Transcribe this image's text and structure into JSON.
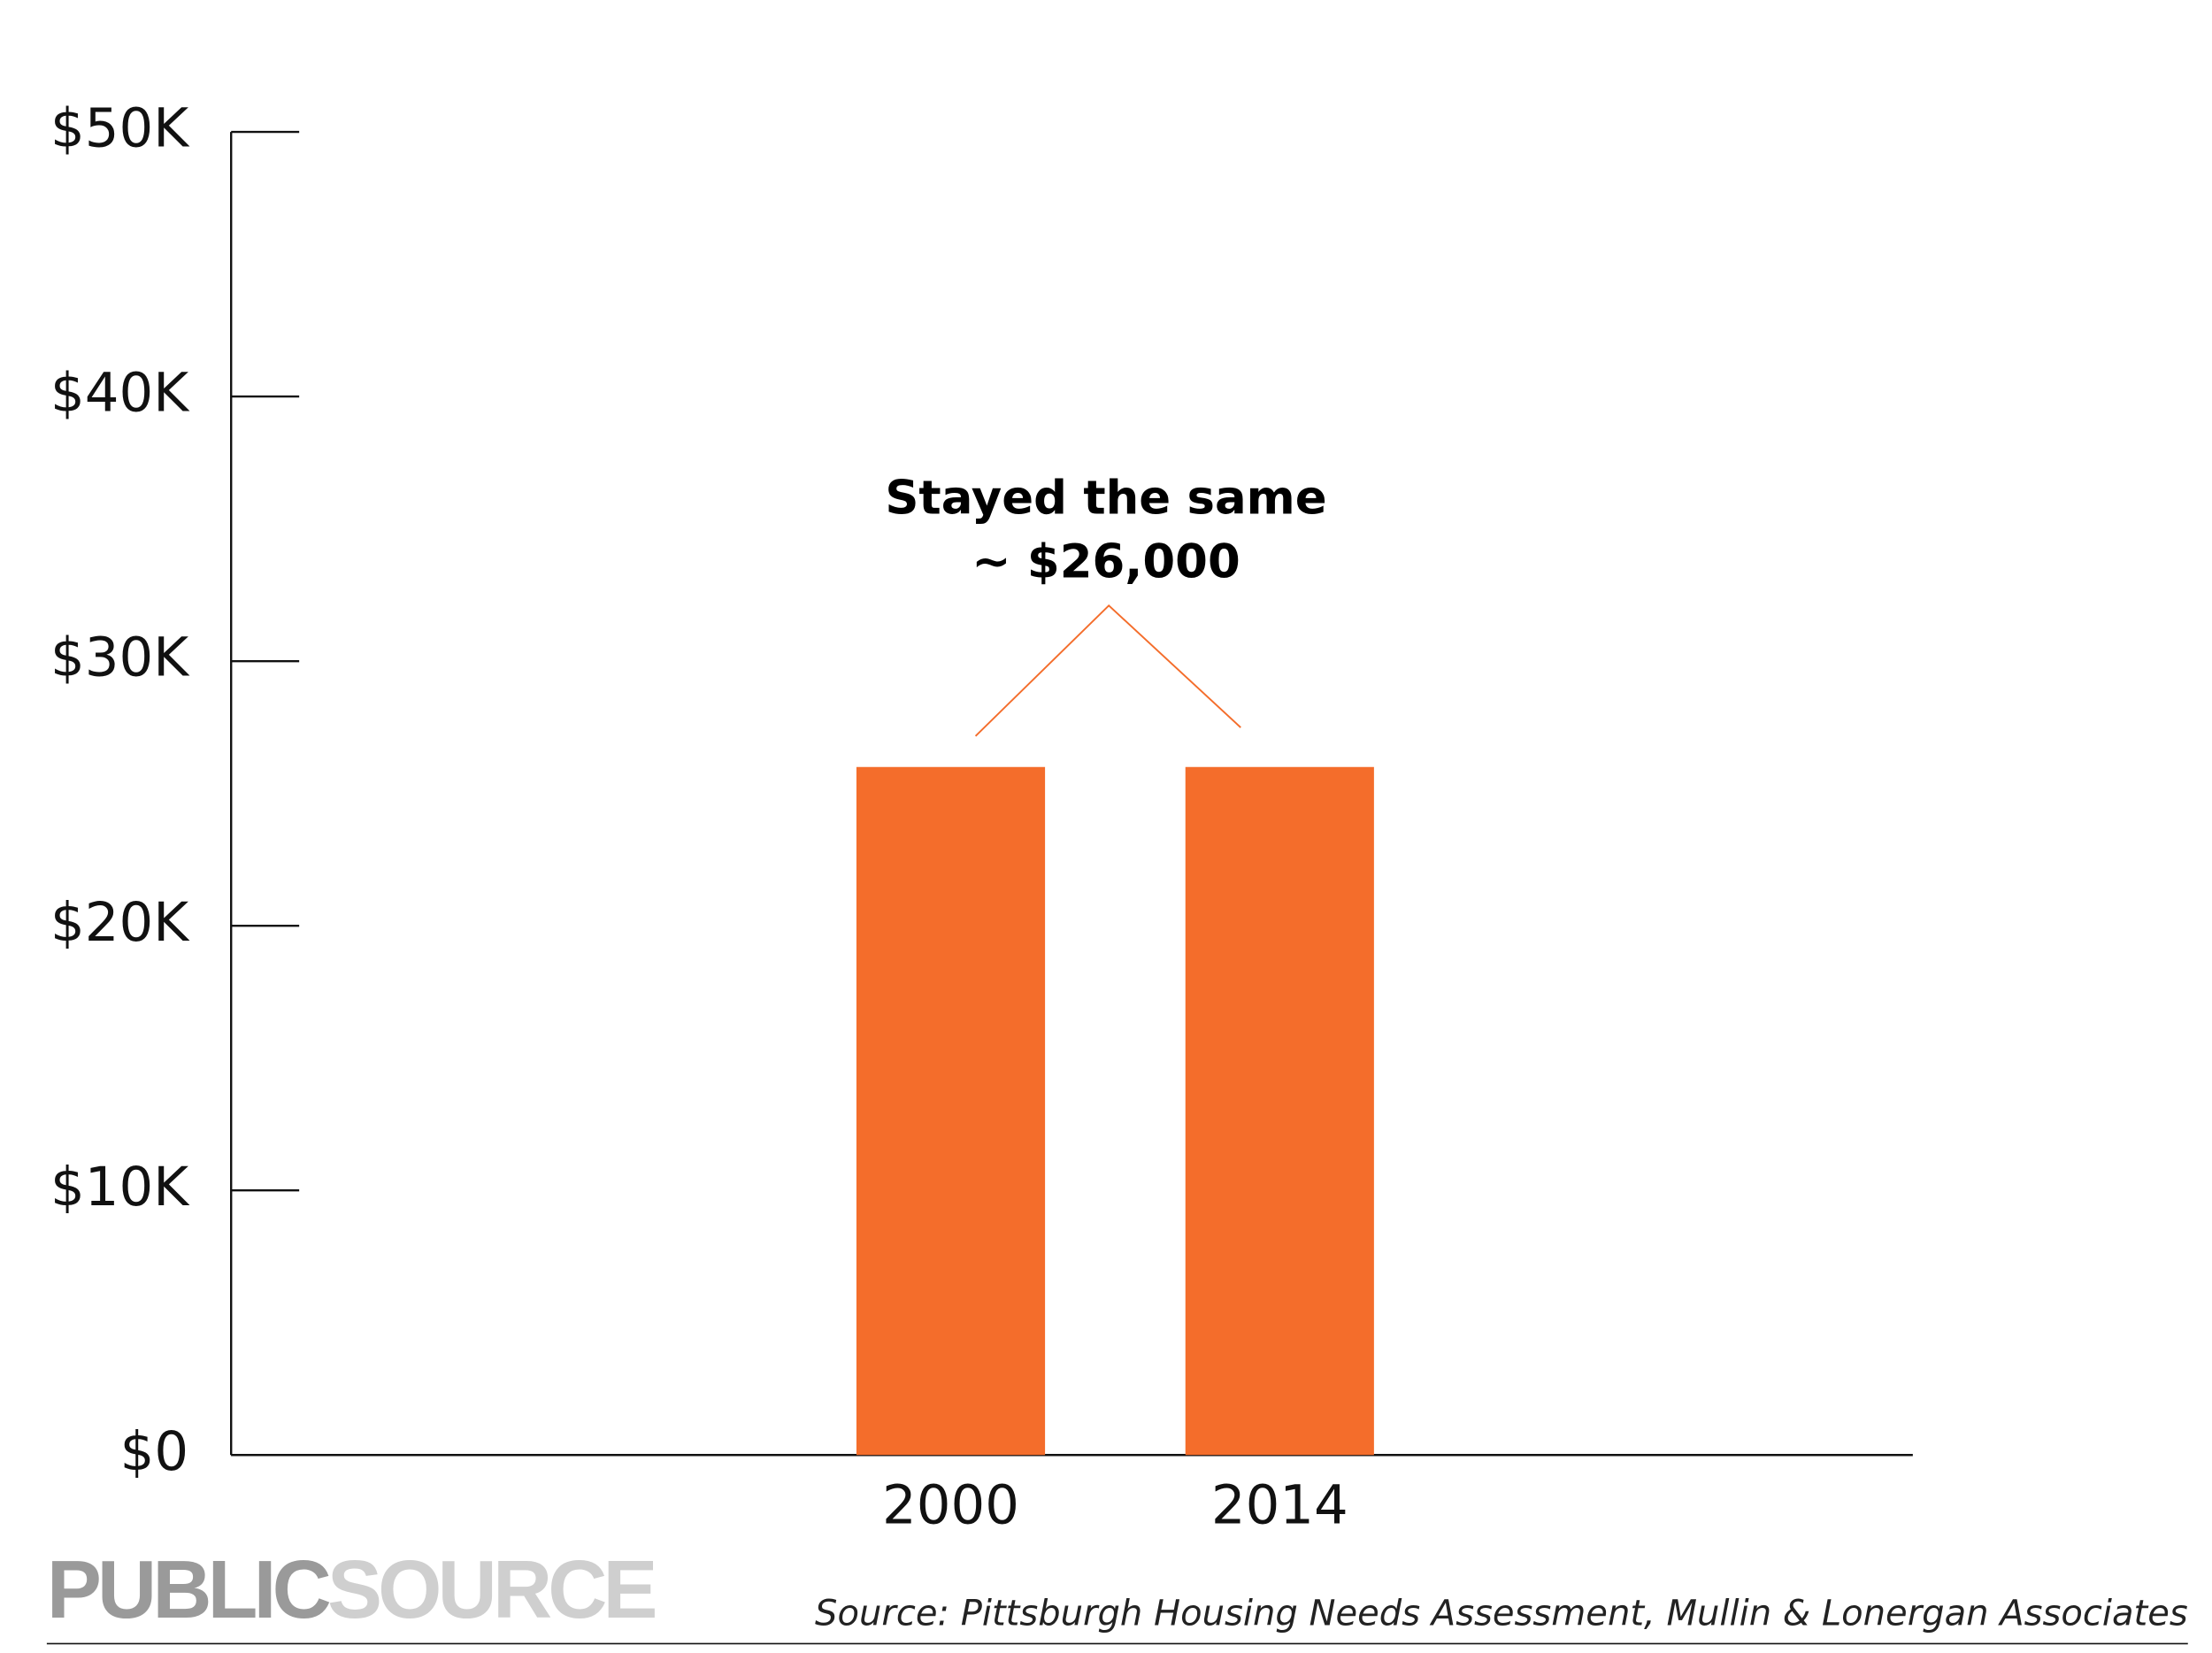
{
  "chart_data": {
    "type": "bar",
    "categories": [
      "2000",
      "2014"
    ],
    "values": [
      26000,
      26000
    ],
    "color": "#f46d2b",
    "ylim": [
      0,
      50000
    ],
    "yticks": [
      {
        "value": 0,
        "label": "$0"
      },
      {
        "value": 10000,
        "label": "$10K"
      },
      {
        "value": 20000,
        "label": "$20K"
      },
      {
        "value": 30000,
        "label": "$30K"
      },
      {
        "value": 40000,
        "label": "$40K"
      },
      {
        "value": 50000,
        "label": "$50K"
      }
    ],
    "annotation": [
      "Stayed the same",
      "~ $26,000"
    ],
    "logo": [
      "PUBLIC",
      "SOURCE"
    ],
    "source": "Source: Pittsburgh Housing Needs Assessment, Mullin & Lonergan Associates"
  }
}
